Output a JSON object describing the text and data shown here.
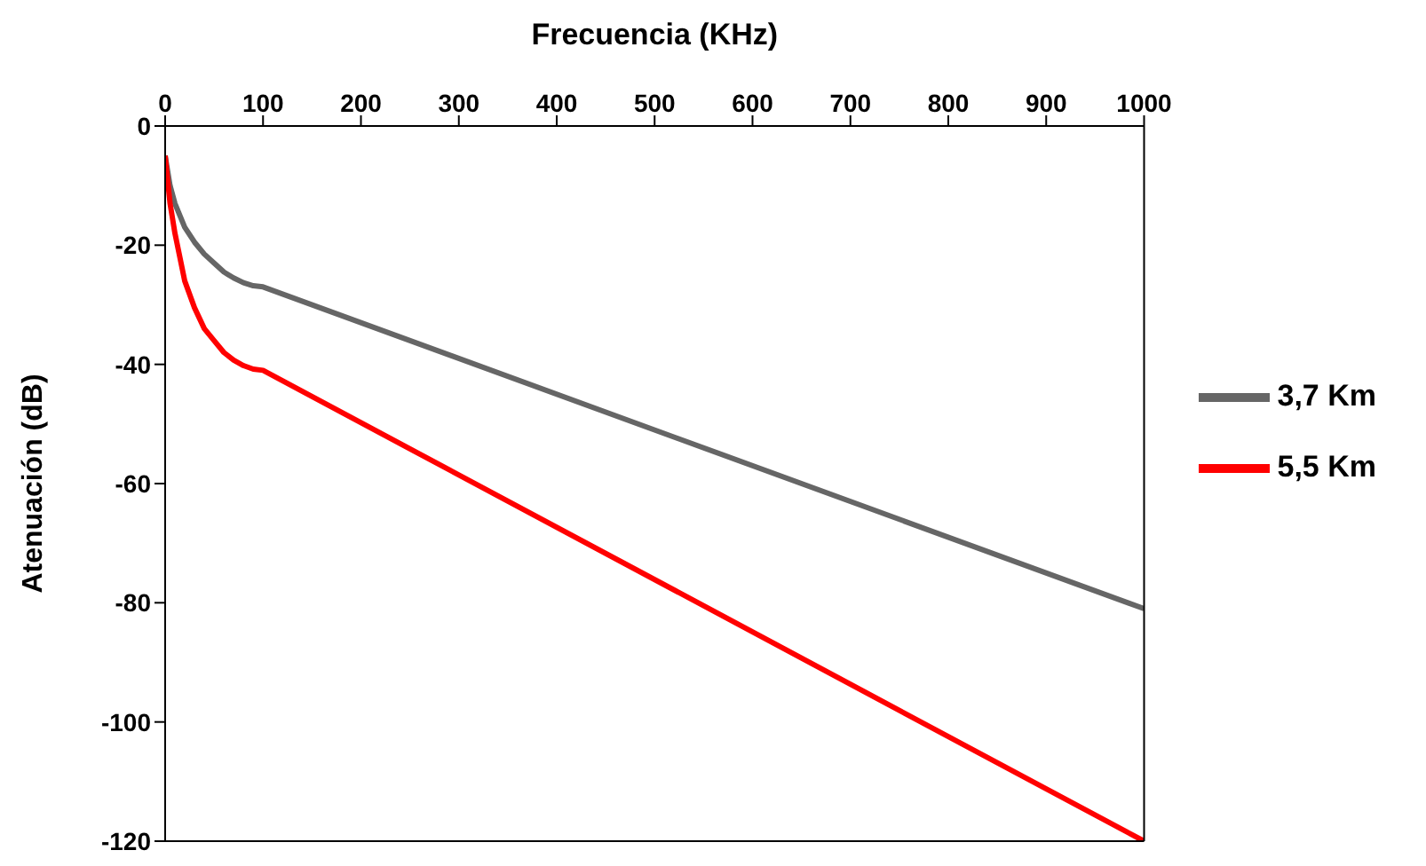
{
  "chart_data": {
    "type": "line",
    "xlabel": "Frecuencia (KHz)",
    "ylabel": "Atenuación (dB)",
    "xlim": [
      0,
      1000
    ],
    "xticks": [
      0,
      100,
      200,
      300,
      400,
      500,
      600,
      700,
      800,
      900,
      1000
    ],
    "ylim": [
      -120,
      0
    ],
    "yticks": [
      0,
      -20,
      -40,
      -60,
      -80,
      -100,
      -120
    ],
    "legend": "right",
    "marker": "none",
    "line_style": "solid",
    "series": [
      {
        "name": "3,7 Km",
        "color": "#666666",
        "x": [
          0,
          5,
          10,
          20,
          30,
          40,
          50,
          60,
          70,
          80,
          90,
          100,
          1000
        ],
        "values": [
          -5,
          -10,
          -13,
          -17,
          -19.5,
          -21.5,
          -23,
          -24.5,
          -25.5,
          -26.3,
          -26.8,
          -27,
          -81
        ]
      },
      {
        "name": "5,5 Km",
        "color": "#ff0000",
        "x": [
          0,
          5,
          10,
          20,
          30,
          40,
          50,
          60,
          70,
          80,
          90,
          100,
          1000
        ],
        "values": [
          -5,
          -13,
          -18,
          -26,
          -30.5,
          -34,
          -36,
          -38,
          -39.3,
          -40.2,
          -40.8,
          -41,
          -120
        ]
      }
    ]
  }
}
